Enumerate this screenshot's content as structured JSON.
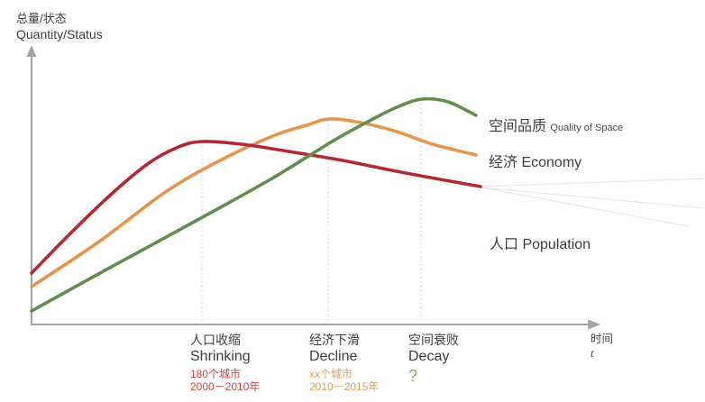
{
  "page": {
    "background": "#ffffff"
  },
  "y_axis": {
    "title_cn": "总量/状态",
    "title_en": "Quantity/Status"
  },
  "x_axis": {
    "title_cn": "时间",
    "title_en": "t"
  },
  "legend": {
    "space_quality_cn": "空间品质",
    "space_quality_en": "Quality of Space",
    "economy": "经济 Economy",
    "population": "人口 Population"
  },
  "annotations": {
    "shrinking": {
      "title_cn": "人口收缩",
      "title_en": "Shrinking",
      "detail1": "180个城市",
      "detail2": "2000－2010年",
      "detail_color": "#ce443e"
    },
    "decline": {
      "title_cn": "经济下滑",
      "title_en": "Decline",
      "detail1": "xx个城市",
      "detail2": "2010－2015年",
      "detail_color": "#dfa05c"
    },
    "decay": {
      "title_cn": "空间衰败",
      "title_en": "Decay",
      "question_mark": "?",
      "question_color": "#84b85c"
    }
  },
  "chart_data": {
    "type": "line",
    "title": "",
    "xlabel": "时间 t (time)",
    "ylabel": "总量/状态 Quantity/Status",
    "axes_note": "Conceptual diagram: no numeric ticks; coordinates are pixel positions on the 782x446 canvas, y increases downward",
    "grid": false,
    "legend_position": "right of curve ends",
    "layout": {
      "y_axis_x": 35,
      "y_axis_top": 62,
      "x_axis_y": 360,
      "x_axis_right": 653,
      "axis_color": "#a3a3a3"
    },
    "milestone_color": "#c8c8c8",
    "milestone_lines": [
      {
        "x": 224,
        "y_top": 157,
        "label": "人口收缩 Shrinking"
      },
      {
        "x": 364,
        "y_top": 133,
        "label": "经济下滑 Decline"
      },
      {
        "x": 467,
        "y_top": 110,
        "label": "空间衰败 Decay"
      }
    ],
    "projection_color": "#e4e4e4",
    "projection_lines": [
      [
        534,
        207,
        781,
        198
      ],
      [
        534,
        208,
        781,
        231
      ],
      [
        534,
        208,
        763,
        251
      ]
    ],
    "series": [
      {
        "key": "economy",
        "name": "经济 Economy",
        "color": "#e6954b",
        "points": [
          [
            35,
            318
          ],
          [
            110,
            268
          ],
          [
            185,
            212
          ],
          [
            250,
            175
          ],
          [
            305,
            150
          ],
          [
            340,
            139
          ],
          [
            365,
            132
          ],
          [
            400,
            136
          ],
          [
            440,
            146
          ],
          [
            480,
            160
          ],
          [
            528,
            172
          ]
        ],
        "peak_x": 364
      },
      {
        "key": "population",
        "name": "人口 Population",
        "color": "#b12a32",
        "points": [
          [
            35,
            303
          ],
          [
            80,
            257
          ],
          [
            125,
            214
          ],
          [
            165,
            181
          ],
          [
            198,
            163
          ],
          [
            225,
            157
          ],
          [
            268,
            160
          ],
          [
            320,
            168
          ],
          [
            380,
            178
          ],
          [
            450,
            192
          ],
          [
            533,
            207
          ]
        ],
        "peak_x": 224
      },
      {
        "key": "space_quality",
        "name": "空间品质 Quality of Space",
        "color": "#618f4b",
        "points": [
          [
            35,
            345
          ],
          [
            120,
            298
          ],
          [
            210,
            249
          ],
          [
            300,
            199
          ],
          [
            370,
            156
          ],
          [
            410,
            134
          ],
          [
            440,
            119
          ],
          [
            468,
            110
          ],
          [
            497,
            113
          ],
          [
            528,
            128
          ]
        ],
        "peak_x": 467
      }
    ]
  }
}
